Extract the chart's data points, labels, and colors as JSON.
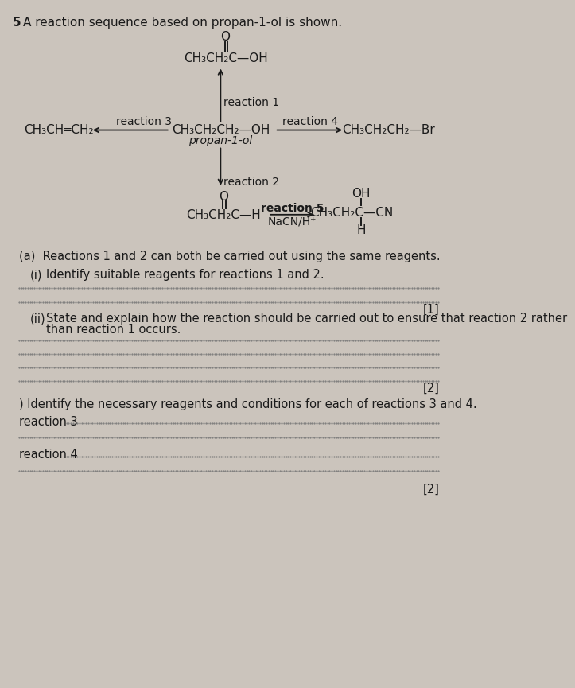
{
  "background_color": "#cbc4bc",
  "text_color": "#1a1a1a",
  "arrow_color": "#1a1a1a",
  "dotted_color": "#777777",
  "title_number": "5",
  "title_text": "A reaction sequence based on propan-1-ol is shown.",
  "chem_fontsize": 11,
  "label_fontsize": 10,
  "body_fontsize": 10.5,
  "small_fontsize": 9.5,
  "q_header": "(a)  Reactions 1 and 2 can both be carried out using the same reagents.",
  "q_ai_label": "(i)",
  "q_ai_text": "Identify suitable reagents for reactions 1 and 2.",
  "q_aii_label": "(ii)",
  "q_aii_line1": "State and explain how the reaction should be carried out to ensure that reaction 2 rather",
  "q_aii_line2": "than reaction 1 occurs.",
  "q_b_text": ") Identify the necessary reagents and conditions for each of reactions 3 and 4.",
  "q_r3": "reaction 3",
  "q_r4": "reaction 4",
  "mark1": "[1]",
  "mark2a": "[2]",
  "mark2b": "[2]",
  "mol_top": "CH₃CH₂C—OH",
  "mol_top_o": "O",
  "mol_center": "CH₃CH₂CH₂—OH",
  "mol_center_label": "propan-1-ol",
  "mol_left": "CH₃CH═CH₂",
  "mol_right": "CH₃CH₂CH₂—Br",
  "mol_bottom": "CH₃CH₂C—H",
  "mol_bottom_o": "O",
  "mol_br_main": "CH₃CH₂C—CN",
  "mol_br_oh": "OH",
  "mol_br_h": "H",
  "r1": "reaction 1",
  "r2": "reaction 2",
  "r3": "reaction 3",
  "r4": "reaction 4",
  "r5": "reaction 5",
  "r5_reagent": "NaCN/H⁺"
}
